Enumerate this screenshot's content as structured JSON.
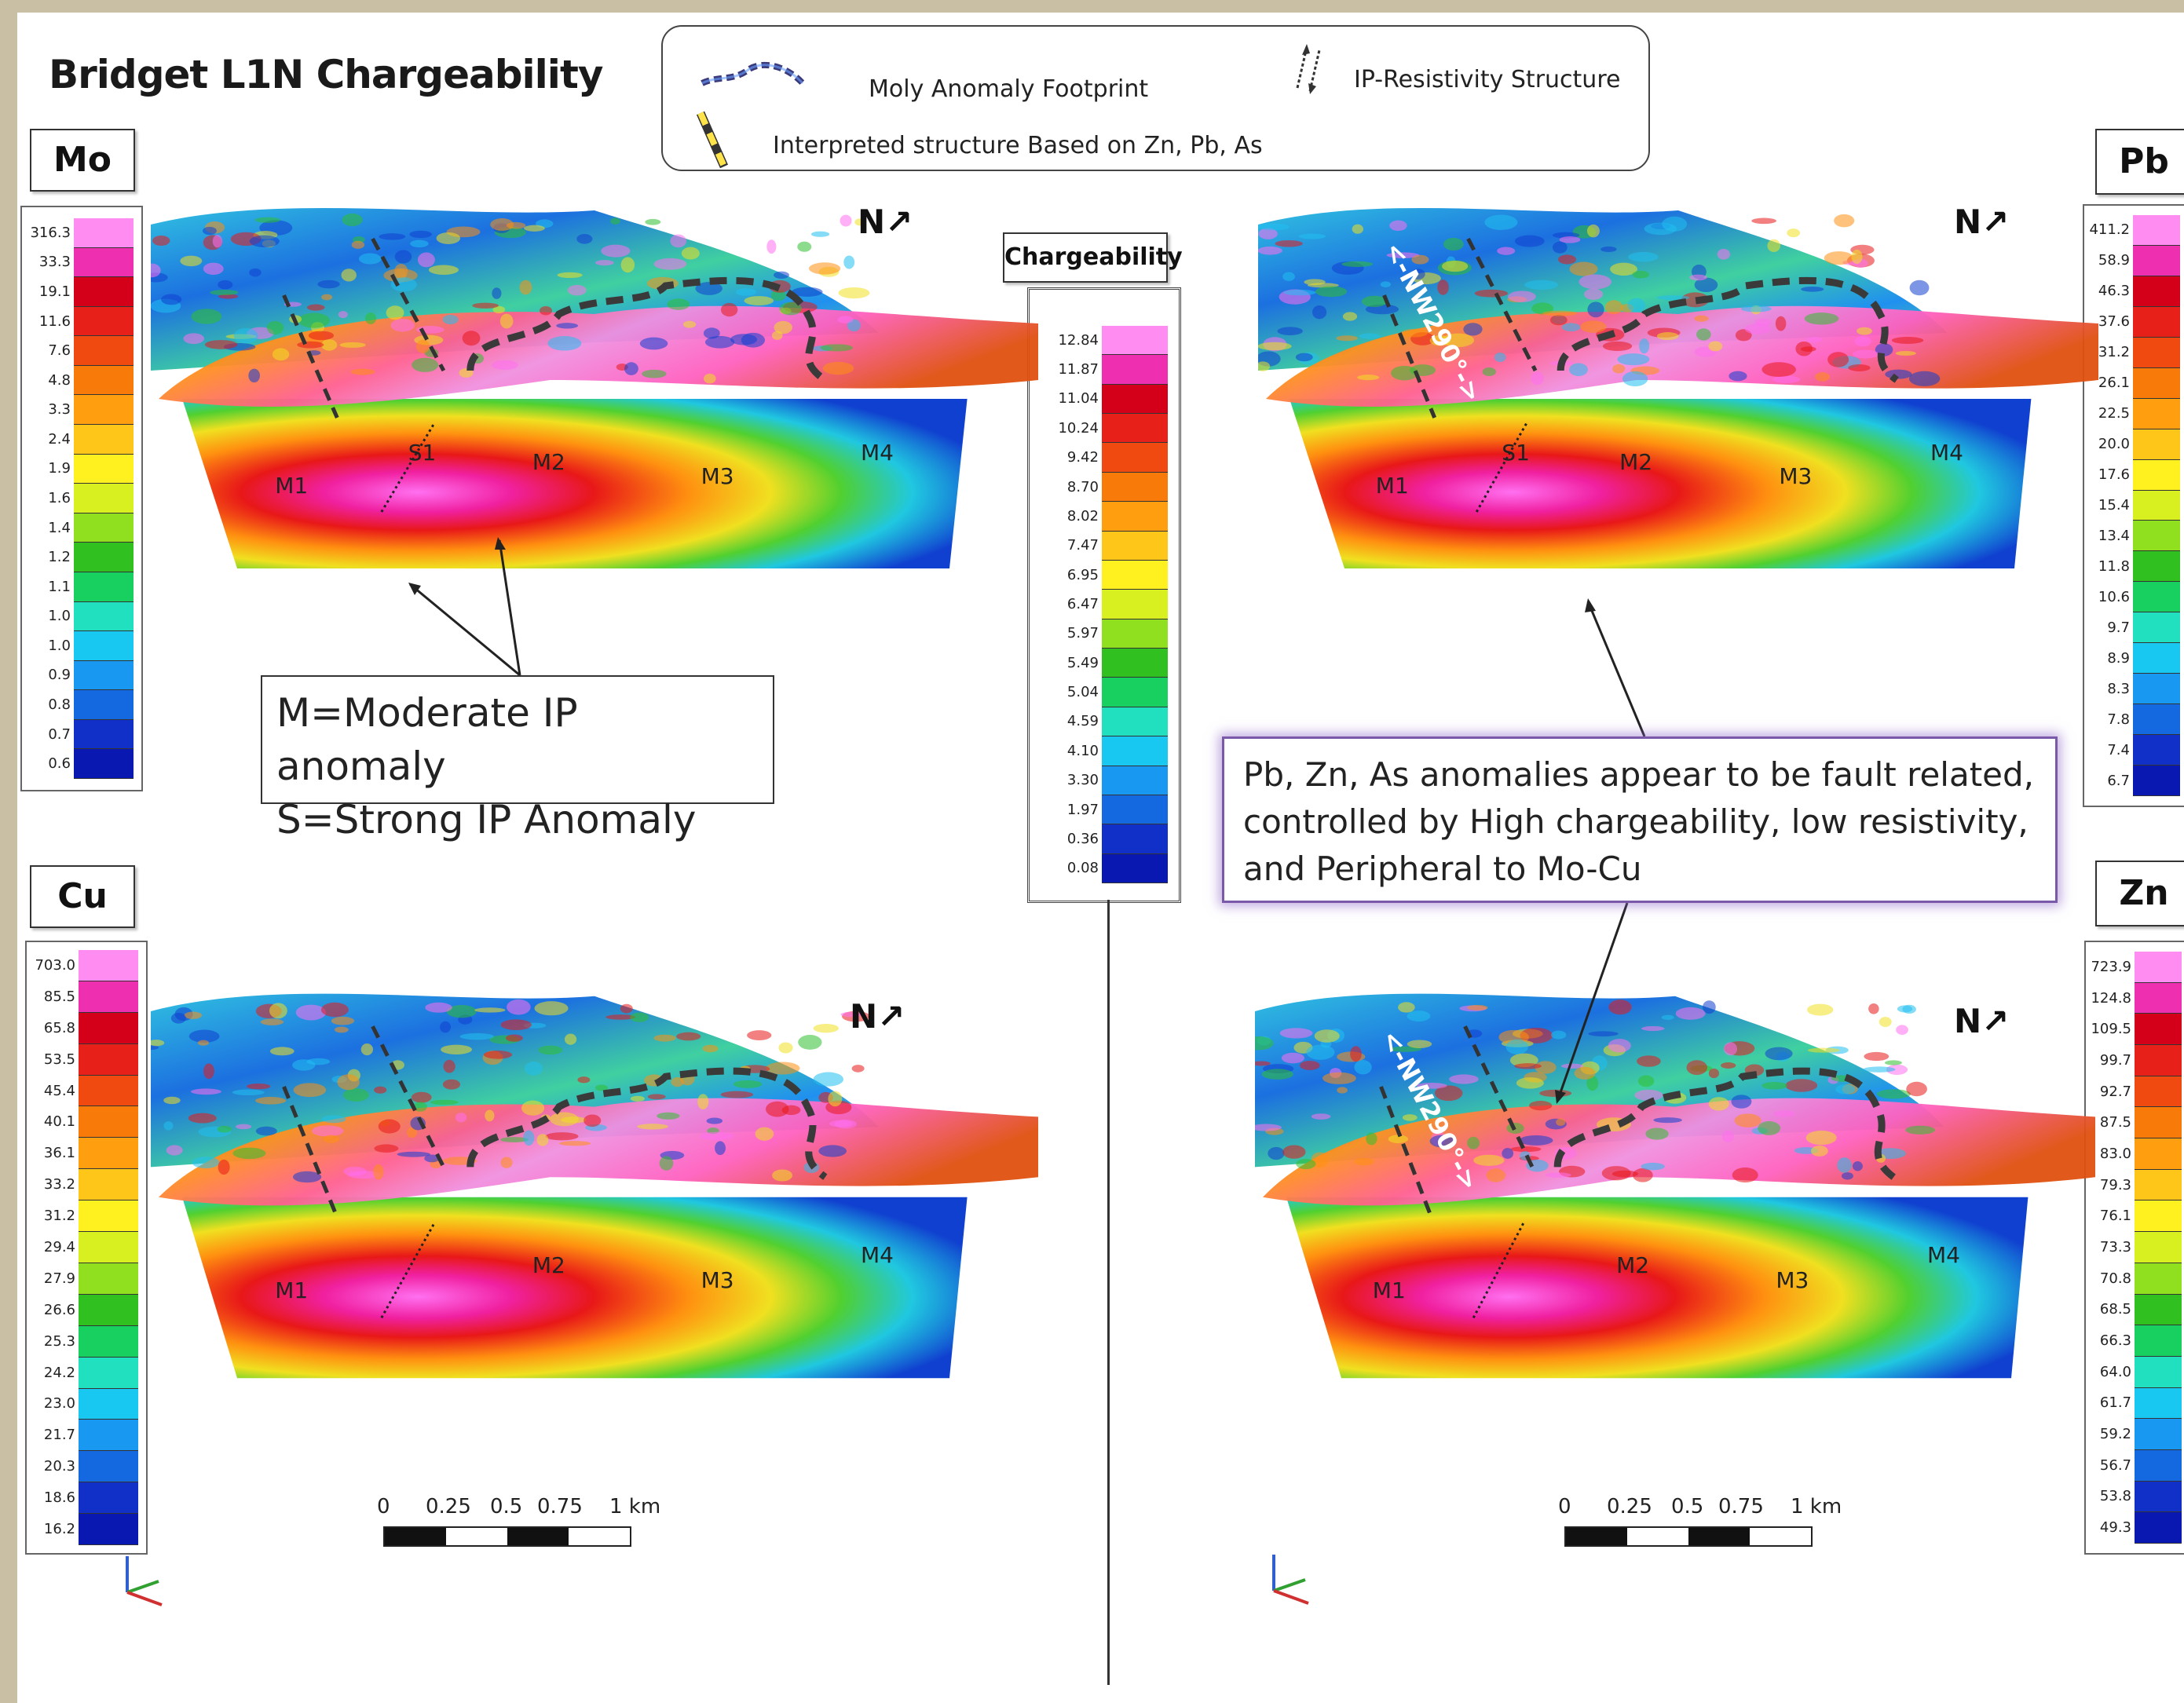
{
  "title": "Bridget L1N Chargeability",
  "legend": {
    "items": [
      {
        "label": "Moly Anomaly Footprint",
        "icon": "dashed-outline-icon"
      },
      {
        "label": "IP-Resistivity Structure",
        "icon": "fault-arrows-icon"
      },
      {
        "label": "Interpreted structure Based on Zn, Pb, As",
        "icon": "yellow-dashed-line-icon"
      }
    ]
  },
  "north_label": "N",
  "chargeability_scale": {
    "title": "Chargeability",
    "ticks": [
      "12.84",
      "11.87",
      "11.04",
      "10.24",
      "9.42",
      "8.70",
      "8.02",
      "7.47",
      "6.95",
      "6.47",
      "5.97",
      "5.49",
      "5.04",
      "4.59",
      "4.10",
      "3.30",
      "1.97",
      "0.36",
      "0.08"
    ]
  },
  "panels": {
    "mo": {
      "label": "Mo",
      "ticks": [
        "316.3",
        "33.3",
        "19.1",
        "11.6",
        "7.6",
        "4.8",
        "3.3",
        "2.4",
        "1.9",
        "1.6",
        "1.4",
        "1.2",
        "1.1",
        "1.0",
        "1.0",
        "0.9",
        "0.8",
        "0.7",
        "0.6"
      ]
    },
    "cu": {
      "label": "Cu",
      "ticks": [
        "703.0",
        "85.5",
        "65.8",
        "53.5",
        "45.4",
        "40.1",
        "36.1",
        "33.2",
        "31.2",
        "29.4",
        "27.9",
        "26.6",
        "25.3",
        "24.2",
        "23.0",
        "21.7",
        "20.3",
        "18.6",
        "16.2"
      ]
    },
    "pb": {
      "label": "Pb",
      "ticks": [
        "411.2",
        "58.9",
        "46.3",
        "37.6",
        "31.2",
        "26.1",
        "22.5",
        "20.0",
        "17.6",
        "15.4",
        "13.4",
        "11.8",
        "10.6",
        "9.7",
        "8.9",
        "8.3",
        "7.8",
        "7.4",
        "6.7"
      ]
    },
    "zn": {
      "label": "Zn",
      "ticks": [
        "723.9",
        "124.8",
        "109.5",
        "99.7",
        "92.7",
        "87.5",
        "83.0",
        "79.3",
        "76.1",
        "73.3",
        "70.8",
        "68.5",
        "66.3",
        "64.0",
        "61.7",
        "59.2",
        "56.7",
        "53.8",
        "49.3"
      ]
    }
  },
  "anomaly_labels": {
    "m1": "M1",
    "m2": "M2",
    "m3": "M3",
    "m4": "M4",
    "s1": "S1"
  },
  "structure_label": "<-NW290°->",
  "callouts": {
    "ip_line1": "M=Moderate IP anomaly",
    "ip_line2": "S=Strong IP Anomaly",
    "fault_line1": "Pb, Zn, As anomalies appear to be fault related,",
    "fault_line2": "controlled by High chargeability, low resistivity,",
    "fault_line3": "and Peripheral to Mo-Cu"
  },
  "scale_bar": {
    "labels": [
      "0",
      "0.25",
      "0.5",
      "0.75",
      "1 km"
    ]
  },
  "colors": {
    "ramp": [
      "#ff8cf0",
      "#ee30b0",
      "#d4001a",
      "#e8201a",
      "#f04a10",
      "#f87a08",
      "#ff9f10",
      "#ffc61a",
      "#fff020",
      "#d8f020",
      "#90e020",
      "#30c020",
      "#18d060",
      "#20e0c0",
      "#18c8f0",
      "#1898f0",
      "#1468e0",
      "#1030c8",
      "#0818b0"
    ]
  }
}
